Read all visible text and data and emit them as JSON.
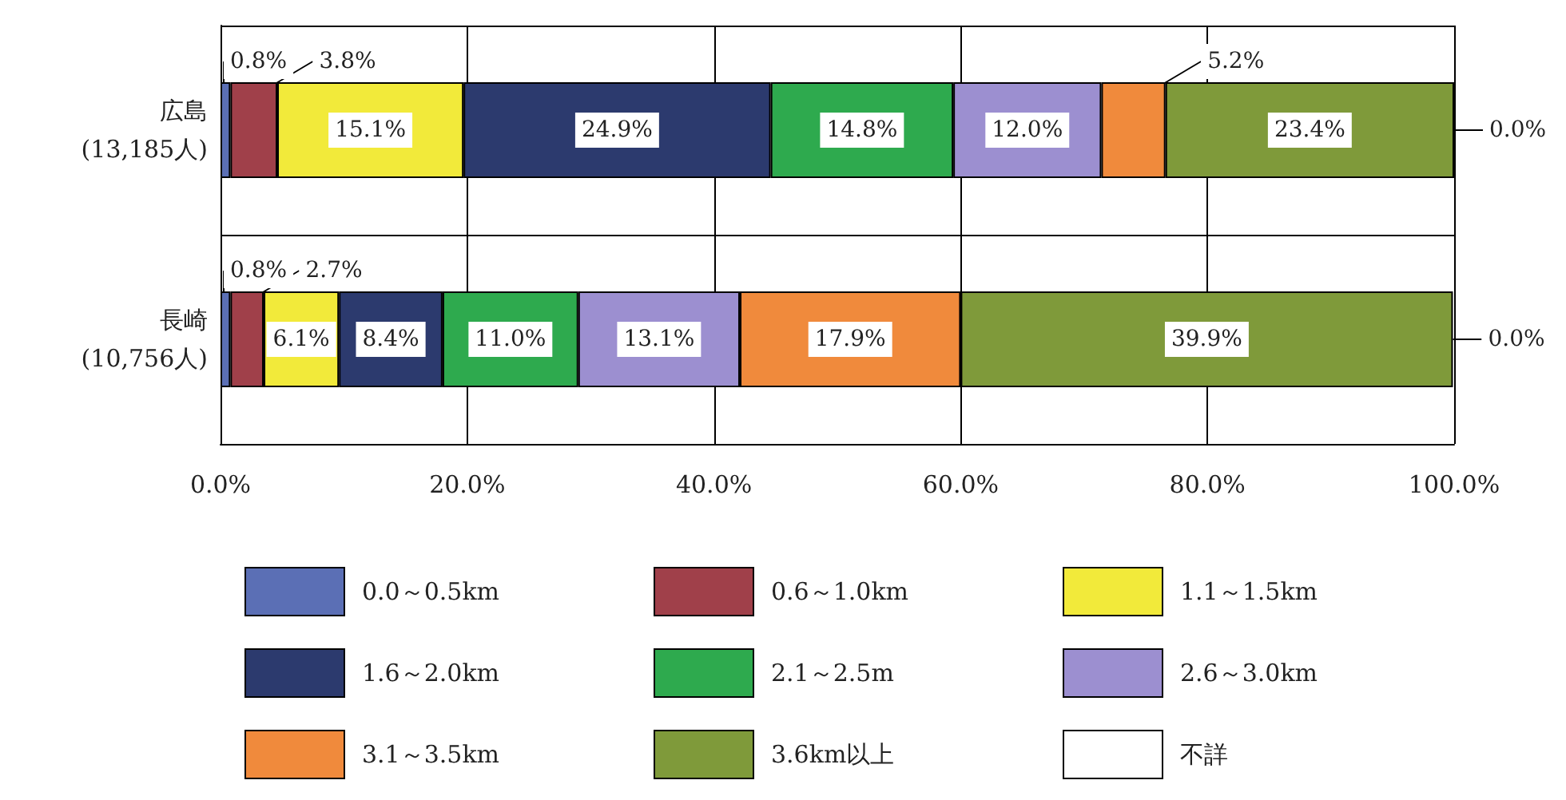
{
  "chart_data": {
    "type": "bar",
    "orientation": "horizontal",
    "stacked": true,
    "categories": [
      "広島\n(13,185人)",
      "長崎\n(10,756人)"
    ],
    "series": [
      {
        "name": "0.0～0.5km",
        "color": "#5b6fb5",
        "values": [
          0.8,
          0.8
        ],
        "value_labels": [
          "0.8%",
          "0.8%"
        ]
      },
      {
        "name": "0.6～1.0km",
        "color": "#a0404a",
        "values": [
          3.8,
          2.7
        ],
        "value_labels": [
          "3.8%",
          "2.7%"
        ]
      },
      {
        "name": "1.1～1.5km",
        "color": "#f2ea3a",
        "values": [
          15.1,
          6.1
        ],
        "value_labels": [
          "15.1%",
          "6.1%"
        ]
      },
      {
        "name": "1.6～2.0km",
        "color": "#2c3a6e",
        "values": [
          24.9,
          8.4
        ],
        "value_labels": [
          "24.9%",
          "8.4%"
        ]
      },
      {
        "name": "2.1～2.5m",
        "color": "#2eaa4e",
        "values": [
          14.8,
          11.0
        ],
        "value_labels": [
          "14.8%",
          "11.0%"
        ]
      },
      {
        "name": "2.6～3.0km",
        "color": "#9c8fd0",
        "values": [
          12.0,
          13.1
        ],
        "value_labels": [
          "12.0%",
          "13.1%"
        ]
      },
      {
        "name": "3.1～3.5km",
        "color": "#f08a3c",
        "values": [
          5.2,
          17.9
        ],
        "value_labels": [
          "5.2%",
          "17.9%"
        ]
      },
      {
        "name": "3.6km以上",
        "color": "#7f9a3a",
        "values": [
          23.4,
          39.9
        ],
        "value_labels": [
          "23.4%",
          "39.9%"
        ]
      },
      {
        "name": "不詳",
        "color": "#ffffff",
        "values": [
          0.0,
          0.0
        ],
        "value_labels": [
          "0.0%",
          "0.0%"
        ]
      }
    ],
    "xlim": [
      0,
      100
    ],
    "xticks": [
      {
        "value": 0,
        "label": "0.0%"
      },
      {
        "value": 20,
        "label": "20.0%"
      },
      {
        "value": 40,
        "label": "40.0%"
      },
      {
        "value": 60,
        "label": "60.0%"
      },
      {
        "value": 80,
        "label": "80.0%"
      },
      {
        "value": 100,
        "label": "100.0%"
      }
    ],
    "grid": true,
    "legend": "bottom"
  }
}
